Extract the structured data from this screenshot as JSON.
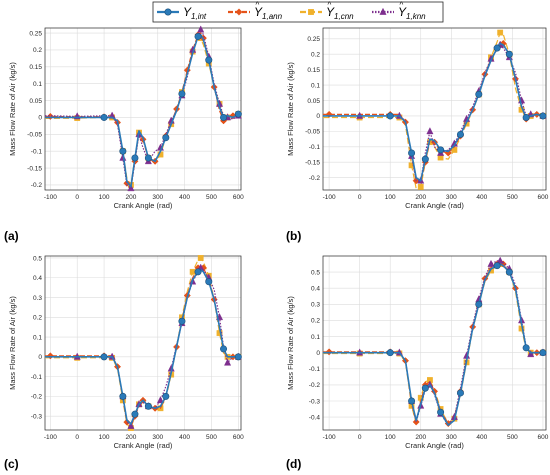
{
  "legend": {
    "position": "top-center",
    "entries": [
      {
        "key": "int",
        "base": "Y",
        "sub": "1,int",
        "hat": false,
        "color": "#2a7ab8",
        "marker": "circle",
        "dash": ""
      },
      {
        "key": "ann",
        "base": "Y",
        "sub": "1,ann",
        "hat": true,
        "color": "#e5531a",
        "marker": "diamond",
        "dash": "5,2"
      },
      {
        "key": "cnn",
        "base": "Y",
        "sub": "1,cnn",
        "hat": true,
        "color": "#f0b12c",
        "marker": "square",
        "dash": "6,3"
      },
      {
        "key": "knn",
        "base": "Y",
        "sub": "1,knn",
        "hat": true,
        "color": "#7e2f8e",
        "marker": "triangle",
        "dash": "1.5,1.5"
      }
    ]
  },
  "panel_labels": [
    "(a)",
    "(b)",
    "(c)",
    "(d)"
  ],
  "chart_data": [
    {
      "type": "line",
      "xlabel": "Crank Angle (rad)",
      "ylabel": "Mass Flow Rate of Air (kg/s)",
      "xlim": [
        -120,
        610
      ],
      "ylim": [
        -0.215,
        0.265
      ],
      "xticks": [
        -100,
        0,
        100,
        200,
        300,
        400,
        500,
        600
      ],
      "yticks": [
        -0.2,
        -0.15,
        -0.1,
        -0.05,
        0,
        0.05,
        0.1,
        0.15,
        0.2,
        0.25
      ],
      "ytick_labels": [
        "-0.2",
        "-0.15",
        "-0.1",
        "-0.05",
        "0",
        "0.05",
        "0.1",
        "0.15",
        "0.2",
        "0.25"
      ],
      "grid": true,
      "x": [
        -120,
        -100,
        0,
        100,
        130,
        150,
        170,
        185,
        200,
        215,
        230,
        245,
        265,
        290,
        310,
        330,
        350,
        370,
        390,
        410,
        430,
        450,
        460,
        470,
        490,
        510,
        530,
        545,
        560,
        580,
        600,
        610
      ],
      "series": [
        {
          "name": "int",
          "values": [
            0,
            0,
            0,
            0,
            0,
            -0.01,
            -0.1,
            -0.19,
            -0.205,
            -0.12,
            -0.04,
            -0.06,
            -0.12,
            -0.13,
            -0.1,
            -0.06,
            -0.02,
            0.02,
            0.07,
            0.13,
            0.19,
            0.24,
            0.245,
            0.23,
            0.17,
            0.09,
            0.03,
            0.0,
            0.005,
            0.0,
            0.01,
            0.01
          ]
        },
        {
          "name": "ann",
          "values": [
            0.003,
            0.003,
            0.002,
            0.002,
            0.0,
            -0.015,
            -0.11,
            -0.195,
            -0.21,
            -0.13,
            -0.04,
            -0.065,
            -0.125,
            -0.13,
            -0.1,
            -0.055,
            -0.015,
            0.025,
            0.075,
            0.14,
            0.2,
            0.245,
            0.25,
            0.235,
            0.175,
            0.09,
            0.02,
            -0.01,
            0.0,
            0.005,
            0.01,
            0.01
          ]
        },
        {
          "name": "cnn",
          "values": [
            -0.003,
            -0.003,
            -0.002,
            0.0,
            0.0,
            -0.01,
            -0.1,
            -0.18,
            -0.2,
            -0.12,
            -0.045,
            -0.065,
            -0.12,
            -0.135,
            -0.11,
            -0.06,
            -0.02,
            0.02,
            0.075,
            0.135,
            0.195,
            0.24,
            0.235,
            0.215,
            0.16,
            0.09,
            0.04,
            0.0,
            0.0,
            0.005,
            0.01,
            0.01
          ]
        },
        {
          "name": "knn",
          "values": [
            0.005,
            0.005,
            0.003,
            0.005,
            0.005,
            -0.02,
            -0.12,
            -0.2,
            -0.21,
            -0.13,
            -0.05,
            -0.09,
            -0.13,
            -0.1,
            -0.09,
            -0.05,
            -0.01,
            0.02,
            0.065,
            0.12,
            0.2,
            0.235,
            0.26,
            0.245,
            0.18,
            0.1,
            0.04,
            0.005,
            0.0,
            -0.005,
            0.005,
            0.01
          ]
        }
      ]
    },
    {
      "type": "line",
      "xlabel": "Crank Angle (rad)",
      "ylabel": "Mass Flow Rate of Air (kg/s)",
      "xlim": [
        -120,
        610
      ],
      "ylim": [
        -0.24,
        0.285
      ],
      "xticks": [
        -100,
        0,
        100,
        200,
        300,
        400,
        500,
        600
      ],
      "yticks": [
        -0.2,
        -0.15,
        -0.1,
        -0.05,
        0,
        0.05,
        0.1,
        0.15,
        0.2,
        0.25
      ],
      "ytick_labels": [
        "-0.2",
        "-0.15",
        "-0.1",
        "-0.05",
        "0",
        "0.05",
        "0.1",
        "0.15",
        "0.2",
        "0.25"
      ],
      "grid": true,
      "x": [
        -120,
        -100,
        0,
        100,
        130,
        150,
        170,
        185,
        200,
        215,
        230,
        245,
        265,
        290,
        310,
        330,
        350,
        370,
        390,
        410,
        430,
        450,
        460,
        470,
        490,
        510,
        530,
        545,
        560,
        580,
        600,
        610
      ],
      "series": [
        {
          "name": "int",
          "values": [
            0,
            0,
            0,
            0,
            0,
            -0.02,
            -0.12,
            -0.2,
            -0.21,
            -0.14,
            -0.075,
            -0.08,
            -0.11,
            -0.115,
            -0.095,
            -0.06,
            -0.02,
            0.02,
            0.07,
            0.13,
            0.18,
            0.22,
            0.235,
            0.23,
            0.2,
            0.12,
            0.03,
            -0.005,
            0.0,
            0.005,
            0.0,
            0.0
          ]
        },
        {
          "name": "ann",
          "values": [
            0.005,
            0.005,
            0.005,
            0.005,
            0.005,
            -0.02,
            -0.13,
            -0.21,
            -0.215,
            -0.15,
            -0.08,
            -0.085,
            -0.115,
            -0.12,
            -0.1,
            -0.065,
            -0.02,
            0.02,
            0.075,
            0.135,
            0.185,
            0.22,
            0.24,
            0.235,
            0.2,
            0.12,
            0.03,
            -0.01,
            0.0,
            0.005,
            0.0,
            0.0
          ]
        },
        {
          "name": "cnn",
          "values": [
            -0.005,
            -0.005,
            -0.005,
            -0.005,
            -0.005,
            -0.03,
            -0.16,
            -0.235,
            -0.23,
            -0.15,
            -0.085,
            -0.1,
            -0.135,
            -0.14,
            -0.11,
            -0.07,
            -0.025,
            0.015,
            0.07,
            0.13,
            0.19,
            0.24,
            0.27,
            0.265,
            0.2,
            0.09,
            0.02,
            -0.01,
            0.0,
            0.005,
            0.0,
            0.0
          ]
        },
        {
          "name": "knn",
          "values": [
            0.0,
            0.0,
            0.0,
            0.0,
            0.0,
            -0.015,
            -0.13,
            -0.21,
            -0.21,
            -0.12,
            -0.05,
            -0.1,
            -0.12,
            -0.11,
            -0.09,
            -0.05,
            -0.01,
            0.03,
            0.08,
            0.14,
            0.185,
            0.215,
            0.23,
            0.22,
            0.19,
            0.14,
            0.05,
            0.0,
            0.005,
            0.005,
            0.0,
            0.0
          ]
        }
      ]
    },
    {
      "type": "line",
      "xlabel": "Crank Angle (rad)",
      "ylabel": "Mass Flow Rate of Air (kg/s)",
      "xlim": [
        -120,
        610
      ],
      "ylim": [
        -0.37,
        0.51
      ],
      "xticks": [
        -100,
        0,
        100,
        200,
        300,
        400,
        500,
        600
      ],
      "yticks": [
        -0.3,
        -0.2,
        -0.1,
        0,
        0.1,
        0.2,
        0.3,
        0.4,
        0.5
      ],
      "ytick_labels": [
        "-0.3",
        "-0.2",
        "-0.1",
        "0",
        "0.1",
        "0.2",
        "0.3",
        "0.4",
        "0.5"
      ],
      "grid": true,
      "x": [
        -120,
        -100,
        0,
        100,
        130,
        150,
        170,
        185,
        200,
        215,
        230,
        245,
        265,
        290,
        310,
        330,
        350,
        370,
        390,
        410,
        430,
        450,
        460,
        470,
        490,
        510,
        530,
        545,
        560,
        580,
        600,
        610
      ],
      "series": [
        {
          "name": "int",
          "values": [
            0,
            0,
            0,
            0,
            0,
            -0.05,
            -0.2,
            -0.32,
            -0.34,
            -0.29,
            -0.24,
            -0.22,
            -0.25,
            -0.26,
            -0.25,
            -0.2,
            -0.08,
            0.05,
            0.18,
            0.3,
            0.39,
            0.43,
            0.44,
            0.43,
            0.38,
            0.29,
            0.15,
            0.04,
            0.0,
            0.0,
            0.0,
            0.0
          ]
        },
        {
          "name": "ann",
          "values": [
            0.005,
            0.005,
            0.005,
            0.005,
            0.005,
            -0.05,
            -0.21,
            -0.33,
            -0.35,
            -0.3,
            -0.25,
            -0.22,
            -0.24,
            -0.26,
            -0.26,
            -0.2,
            -0.08,
            0.05,
            0.19,
            0.31,
            0.4,
            0.45,
            0.46,
            0.45,
            0.39,
            0.29,
            0.15,
            0.04,
            0.0,
            0.0,
            0.0,
            0.0
          ]
        },
        {
          "name": "cnn",
          "values": [
            -0.005,
            -0.005,
            -0.005,
            -0.005,
            -0.005,
            -0.06,
            -0.22,
            -0.34,
            -0.36,
            -0.3,
            -0.24,
            -0.21,
            -0.25,
            -0.27,
            -0.26,
            -0.21,
            -0.09,
            0.05,
            0.2,
            0.33,
            0.43,
            0.49,
            0.5,
            0.48,
            0.41,
            0.29,
            0.12,
            0.02,
            0.0,
            0.0,
            0.0,
            0.0
          ]
        },
        {
          "name": "knn",
          "values": [
            0.0,
            0.0,
            0.0,
            0.0,
            0.0,
            -0.05,
            -0.2,
            -0.33,
            -0.35,
            -0.3,
            -0.24,
            -0.23,
            -0.25,
            -0.26,
            -0.22,
            -0.15,
            -0.06,
            0.06,
            0.17,
            0.3,
            0.38,
            0.43,
            0.45,
            0.44,
            0.4,
            0.34,
            0.2,
            0.05,
            -0.03,
            0.0,
            0.0,
            0.0
          ]
        }
      ]
    },
    {
      "type": "line",
      "xlabel": "Crank Angle (rad)",
      "ylabel": "Mass Flow Rate of Air (kg/s)",
      "xlim": [
        -120,
        610
      ],
      "ylim": [
        -0.48,
        0.6
      ],
      "xticks": [
        -100,
        0,
        100,
        200,
        300,
        400,
        500,
        600
      ],
      "yticks": [
        -0.4,
        -0.3,
        -0.2,
        -0.1,
        0,
        0.1,
        0.2,
        0.3,
        0.4,
        0.5
      ],
      "ytick_labels": [
        "-0.4",
        "-0.3",
        "-0.2",
        "-0.1",
        "0",
        "0.1",
        "0.2",
        "0.3",
        "0.4",
        "0.5"
      ],
      "grid": true,
      "x": [
        -120,
        -100,
        0,
        100,
        130,
        150,
        170,
        185,
        200,
        215,
        230,
        245,
        265,
        290,
        310,
        330,
        350,
        370,
        390,
        410,
        430,
        450,
        460,
        470,
        490,
        510,
        530,
        545,
        560,
        580,
        600,
        610
      ],
      "series": [
        {
          "name": "int",
          "values": [
            0,
            0,
            0,
            0,
            0,
            -0.05,
            -0.3,
            -0.42,
            -0.32,
            -0.22,
            -0.2,
            -0.25,
            -0.37,
            -0.45,
            -0.42,
            -0.25,
            -0.05,
            0.15,
            0.3,
            0.45,
            0.52,
            0.54,
            0.55,
            0.54,
            0.5,
            0.4,
            0.18,
            0.03,
            0.0,
            0.0,
            0.0,
            0.0
          ]
        },
        {
          "name": "ann",
          "values": [
            0.005,
            0.005,
            0.005,
            0.005,
            0.005,
            -0.05,
            -0.32,
            -0.43,
            -0.3,
            -0.2,
            -0.18,
            -0.24,
            -0.36,
            -0.44,
            -0.4,
            -0.24,
            -0.04,
            0.16,
            0.31,
            0.46,
            0.53,
            0.55,
            0.56,
            0.55,
            0.5,
            0.4,
            0.18,
            0.03,
            0.0,
            0.0,
            0.0,
            0.0
          ]
        },
        {
          "name": "cnn",
          "values": [
            -0.005,
            -0.005,
            -0.005,
            -0.005,
            -0.005,
            -0.06,
            -0.33,
            -0.44,
            -0.28,
            -0.18,
            -0.17,
            -0.23,
            -0.35,
            -0.44,
            -0.41,
            -0.26,
            -0.06,
            0.14,
            0.3,
            0.44,
            0.51,
            0.54,
            0.55,
            0.54,
            0.5,
            0.38,
            0.15,
            0.02,
            0.0,
            0.0,
            0.0,
            0.0
          ]
        },
        {
          "name": "knn",
          "values": [
            0.0,
            0.0,
            0.0,
            0.0,
            0.0,
            -0.05,
            -0.3,
            -0.43,
            -0.33,
            -0.23,
            -0.2,
            -0.26,
            -0.38,
            -0.45,
            -0.4,
            -0.22,
            -0.02,
            0.17,
            0.33,
            0.47,
            0.55,
            0.57,
            0.57,
            0.56,
            0.52,
            0.42,
            0.2,
            0.04,
            -0.01,
            0.0,
            0.0,
            0.0
          ]
        }
      ]
    }
  ]
}
